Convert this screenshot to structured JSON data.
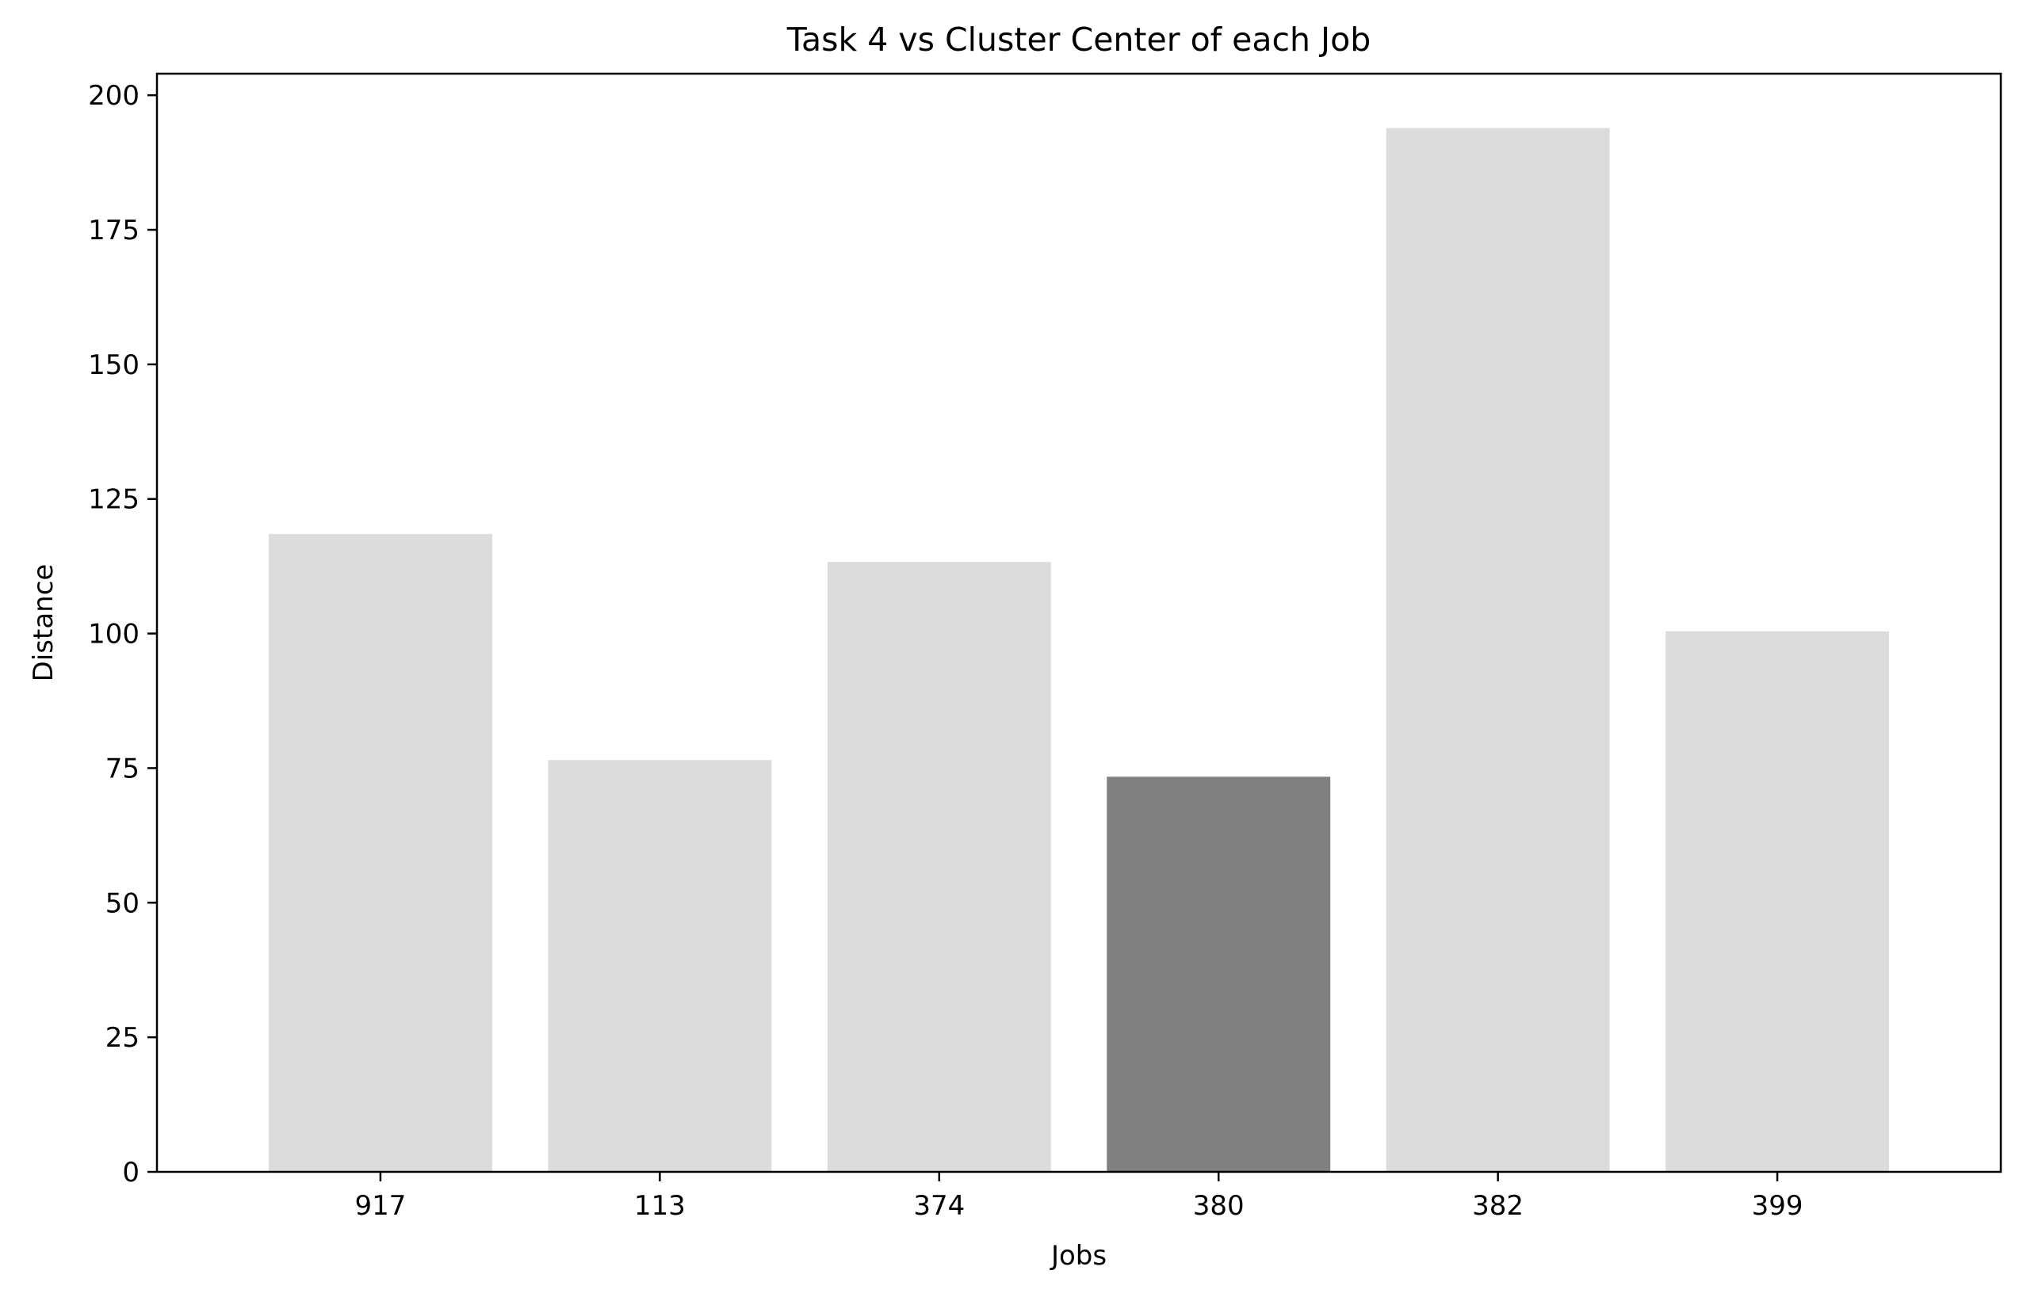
{
  "chart_data": {
    "type": "bar",
    "title": "Task 4 vs Cluster Center of each Job",
    "xlabel": "Jobs",
    "ylabel": "Distance",
    "categories": [
      "917",
      "113",
      "374",
      "380",
      "382",
      "399"
    ],
    "values": [
      118.5,
      76.5,
      113.3,
      73.4,
      193.9,
      100.4
    ],
    "ylim": [
      0,
      204
    ],
    "yticks": [
      0,
      25,
      50,
      75,
      100,
      125,
      150,
      175,
      200
    ],
    "highlight_index": 3,
    "colors": {
      "bar_default": "#dcdcdc",
      "bar_highlight": "#808080",
      "axis": "#000000"
    },
    "grid": false,
    "legend": "none"
  }
}
